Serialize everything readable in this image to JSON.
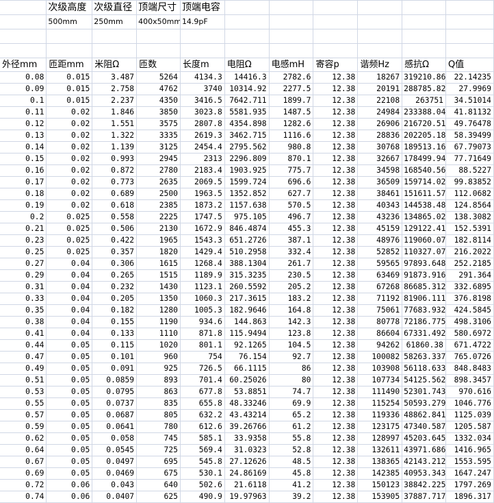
{
  "spec": {
    "labels": [
      "次级高度",
      "次级直径",
      "顶端尺寸",
      "顶端电容"
    ],
    "values": [
      "500mm",
      "250mm",
      "400x50mm",
      "14.9pF"
    ]
  },
  "columns": [
    "外径mm",
    "匝距mm",
    "米阻Ω",
    "匝数",
    "长度m",
    "电阻Ω",
    "电感mH",
    "寄容p",
    "谐频Hz",
    "感抗Ω",
    "Q值"
  ],
  "rows": [
    [
      "0.08",
      "0.015",
      "3.487",
      "5264",
      "4134.3",
      "14416.3",
      "2782.6",
      "12.38",
      "18267",
      "319210.86",
      "22.14235"
    ],
    [
      "0.09",
      "0.015",
      "2.758",
      "4762",
      "3740",
      "10314.92",
      "2277.5",
      "12.38",
      "20191",
      "288785.82",
      "27.9969"
    ],
    [
      "0.1",
      "0.015",
      "2.237",
      "4350",
      "3416.5",
      "7642.711",
      "1899.7",
      "12.38",
      "22108",
      "263751",
      "34.51014"
    ],
    [
      "0.11",
      "0.02",
      "1.846",
      "3850",
      "3023.8",
      "5581.935",
      "1487.5",
      "12.38",
      "24984",
      "233388.04",
      "41.81132"
    ],
    [
      "0.12",
      "0.02",
      "1.551",
      "3575",
      "2807.8",
      "4354.898",
      "1282.6",
      "12.38",
      "26906",
      "216720.51",
      "49.76478"
    ],
    [
      "0.13",
      "0.02",
      "1.322",
      "3335",
      "2619.3",
      "3462.715",
      "1116.6",
      "12.38",
      "28836",
      "202205.18",
      "58.39499"
    ],
    [
      "0.14",
      "0.02",
      "1.139",
      "3125",
      "2454.4",
      "2795.562",
      "980.8",
      "12.38",
      "30768",
      "189513.16",
      "67.79073"
    ],
    [
      "0.15",
      "0.02",
      "0.993",
      "2945",
      "2313",
      "2296.809",
      "870.1",
      "12.38",
      "32667",
      "178499.94",
      "77.71649"
    ],
    [
      "0.16",
      "0.02",
      "0.872",
      "2780",
      "2183.4",
      "1903.925",
      "775.7",
      "12.38",
      "34598",
      "168540.56",
      "88.5227"
    ],
    [
      "0.17",
      "0.02",
      "0.773",
      "2635",
      "2069.5",
      "1599.724",
      "696.6",
      "12.38",
      "36509",
      "159714.02",
      "99.83852"
    ],
    [
      "0.18",
      "0.02",
      "0.689",
      "2500",
      "1963.5",
      "1352.852",
      "627.7",
      "12.38",
      "38461",
      "151611.57",
      "112.0682"
    ],
    [
      "0.19",
      "0.02",
      "0.618",
      "2385",
      "1873.2",
      "1157.638",
      "570.5",
      "12.38",
      "40343",
      "144538.48",
      "124.8564"
    ],
    [
      "0.2",
      "0.025",
      "0.558",
      "2225",
      "1747.5",
      "975.105",
      "496.7",
      "12.38",
      "43236",
      "134865.02",
      "138.3082"
    ],
    [
      "0.21",
      "0.025",
      "0.506",
      "2130",
      "1672.9",
      "846.4874",
      "455.3",
      "12.38",
      "45159",
      "129122.41",
      "152.5391"
    ],
    [
      "0.23",
      "0.025",
      "0.422",
      "1965",
      "1543.3",
      "651.2726",
      "387.1",
      "12.38",
      "48976",
      "119060.07",
      "182.8114"
    ],
    [
      "0.25",
      "0.025",
      "0.357",
      "1820",
      "1429.4",
      "510.2958",
      "332.4",
      "12.38",
      "52852",
      "110327.07",
      "216.2022"
    ],
    [
      "0.27",
      "0.04",
      "0.306",
      "1615",
      "1268.4",
      "388.1304",
      "261.7",
      "12.38",
      "59565",
      "97893.648",
      "252.2185"
    ],
    [
      "0.29",
      "0.04",
      "0.265",
      "1515",
      "1189.9",
      "315.3235",
      "230.5",
      "12.38",
      "63469",
      "91873.916",
      "291.364"
    ],
    [
      "0.31",
      "0.04",
      "0.232",
      "1430",
      "1123.1",
      "260.5592",
      "205.2",
      "12.38",
      "67268",
      "86685.312",
      "332.6895"
    ],
    [
      "0.33",
      "0.04",
      "0.205",
      "1350",
      "1060.3",
      "217.3615",
      "183.2",
      "12.38",
      "71192",
      "81906.111",
      "376.8198"
    ],
    [
      "0.35",
      "0.04",
      "0.182",
      "1280",
      "1005.3",
      "182.9646",
      "164.8",
      "12.38",
      "75061",
      "77683.932",
      "424.5845"
    ],
    [
      "0.38",
      "0.04",
      "0.155",
      "1190",
      "934.6",
      "144.863",
      "142.3",
      "12.38",
      "80778",
      "72186.775",
      "498.3106"
    ],
    [
      "0.41",
      "0.04",
      "0.133",
      "1110",
      "871.8",
      "115.9494",
      "123.8",
      "12.38",
      "86604",
      "67331.492",
      "580.6972"
    ],
    [
      "0.44",
      "0.05",
      "0.115",
      "1020",
      "801.1",
      "92.1265",
      "104.5",
      "12.38",
      "94262",
      "61860.38",
      "671.4722"
    ],
    [
      "0.47",
      "0.05",
      "0.101",
      "960",
      "754",
      "76.154",
      "92.7",
      "12.38",
      "100082",
      "58263.337",
      "765.0726"
    ],
    [
      "0.49",
      "0.05",
      "0.091",
      "925",
      "726.5",
      "66.1115",
      "86",
      "12.38",
      "103908",
      "56118.633",
      "848.8483"
    ],
    [
      "0.51",
      "0.05",
      "0.0859",
      "893",
      "701.4",
      "60.25026",
      "80",
      "12.38",
      "107734",
      "54125.562",
      "898.3457"
    ],
    [
      "0.53",
      "0.05",
      "0.0795",
      "863",
      "677.8",
      "53.8851",
      "74.7",
      "12.38",
      "111490",
      "52301.743",
      "970.616"
    ],
    [
      "0.55",
      "0.05",
      "0.0737",
      "835",
      "655.8",
      "48.33246",
      "69.9",
      "12.38",
      "115254",
      "50593.279",
      "1046.776"
    ],
    [
      "0.57",
      "0.05",
      "0.0687",
      "805",
      "632.2",
      "43.43214",
      "65.2",
      "12.38",
      "119336",
      "48862.841",
      "1125.039"
    ],
    [
      "0.59",
      "0.05",
      "0.0641",
      "780",
      "612.6",
      "39.26766",
      "61.2",
      "12.38",
      "123175",
      "47340.587",
      "1205.587"
    ],
    [
      "0.62",
      "0.05",
      "0.058",
      "745",
      "585.1",
      "33.9358",
      "55.8",
      "12.38",
      "128997",
      "45203.645",
      "1332.034"
    ],
    [
      "0.64",
      "0.05",
      "0.0545",
      "725",
      "569.4",
      "31.0323",
      "52.8",
      "12.38",
      "132611",
      "43971.686",
      "1416.965"
    ],
    [
      "0.67",
      "0.05",
      "0.0497",
      "695",
      "545.8",
      "27.12626",
      "48.5",
      "12.38",
      "138365",
      "42143.212",
      "1553.595"
    ],
    [
      "0.69",
      "0.05",
      "0.0469",
      "675",
      "530.1",
      "24.86169",
      "45.8",
      "12.38",
      "142385",
      "40953.343",
      "1647.247"
    ],
    [
      "0.72",
      "0.06",
      "0.043",
      "640",
      "502.6",
      "21.6118",
      "41.2",
      "12.38",
      "150123",
      "38842.225",
      "1797.269"
    ],
    [
      "0.74",
      "0.06",
      "0.0407",
      "625",
      "490.9",
      "19.97963",
      "39.2",
      "12.38",
      "153905",
      "37887.717",
      "1896.317"
    ]
  ]
}
